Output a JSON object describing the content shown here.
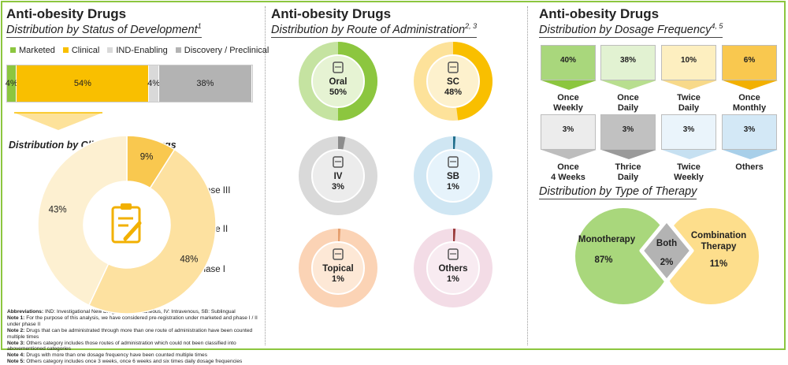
{
  "panels": {
    "status": {
      "title": "Anti-obesity Drugs",
      "subtitle": "Distribution by Status of Development",
      "subtitle_note": "1",
      "clinical_title": "Distribution by Clinical-stage Drugs",
      "icon": "clipboard-pen-icon"
    },
    "route": {
      "title": "Anti-obesity Drugs",
      "subtitle": "Distribution by Route of Administration",
      "subtitle_note": "2, 3"
    },
    "frequency": {
      "title": "Anti-obesity Drugs",
      "subtitle": "Distribution by Dosage Frequency",
      "subtitle_note": "4, 5"
    },
    "therapy": {
      "subtitle": "Distribution by Type of Therapy"
    }
  },
  "notes": [
    {
      "label": "Abbreviations:",
      "text": " IND: Investigational New Drug, SC: Subcutaneous, IV: Intravenous, SB: Sublingual"
    },
    {
      "label": "Note 1:",
      "text": " For the purpose of this analysis, we have considered pre-registration under marketed and phase I / II under phase II"
    },
    {
      "label": "Note 2:",
      "text": " Drugs that can be administrated through more than one route of administration have been counted multiple times"
    },
    {
      "label": "Note 3:",
      "text": " Others category includes those routes of administration which could not been classified into abovementioned categories"
    },
    {
      "label": "Note 4:",
      "text": " Drugs with more than one dosage frequency have been counted multiple times"
    },
    {
      "label": "Note 5:",
      "text": " Others category includes once 3 weeks, once 6 weeks and six times daily dosage frequencies"
    }
  ],
  "chart_data": [
    {
      "type": "bar",
      "id": "status",
      "orientation": "horizontal-stacked",
      "categories": [
        "Marketed",
        "Clinical",
        "IND-Enabling",
        "Discovery / Preclinical"
      ],
      "values": [
        4,
        54,
        4,
        38
      ],
      "labels": [
        "4%",
        "54%",
        "4%",
        "38%"
      ],
      "colors": [
        "#8cc63f",
        "#f9bf00",
        "#d9d9d9",
        "#b3b3b3"
      ],
      "legend": "top"
    },
    {
      "type": "pie",
      "id": "clinical",
      "donut": true,
      "categories": [
        "Phase III",
        "Phase II",
        "Phase I"
      ],
      "values": [
        9,
        48,
        43
      ],
      "labels": [
        "9%",
        "48%",
        "43%"
      ],
      "colors": [
        "#f9c84f",
        "#fde1a0",
        "#fdf0d1"
      ],
      "legend": "right"
    },
    {
      "type": "pie",
      "id": "route",
      "donut": true,
      "categories": [
        "Oral",
        "SC",
        "IV",
        "SB",
        "Topical",
        "Others"
      ],
      "values": [
        50,
        48,
        3,
        1,
        1,
        1
      ],
      "labels": [
        "50%",
        "48%",
        "3%",
        "1%",
        "1%",
        "1%"
      ],
      "colors": {
        "fill": [
          "#8cc63f",
          "#f9bf00",
          "#8c8c8c",
          "#1f6e8c",
          "#e59e6d",
          "#9b3b3b"
        ],
        "track": [
          "#c5e3a1",
          "#fde29a",
          "#d9d9d9",
          "#cfe6f3",
          "#fbd3b5",
          "#f3dce6"
        ],
        "inner": [
          "#e6f3d3",
          "#fdf1cd",
          "#ececec",
          "#e6f3fb",
          "#fde8d6",
          "#f8ebf1"
        ]
      },
      "icons": [
        "pill-bottle-icon",
        "syringe-icon",
        "iv-drip-icon",
        "tongue-icon",
        "ointment-tube-icon",
        "other-route-icon"
      ]
    },
    {
      "type": "bar",
      "id": "frequency",
      "categories": [
        "Once Weekly",
        "Once Daily",
        "Twice Daily",
        "Once Monthly",
        "Once 4 Weeks",
        "Thrice Daily",
        "Twice Weekly",
        "Others"
      ],
      "values": [
        40,
        38,
        10,
        6,
        3,
        3,
        3,
        3
      ],
      "labels": [
        "40%",
        "38%",
        "10%",
        "6%",
        "3%",
        "3%",
        "3%",
        "3%"
      ],
      "colors": [
        "#a9d77c",
        "#e2f2d2",
        "#fdefc0",
        "#f9c84f",
        "#ececec",
        "#c1c1c1",
        "#eaf4fb",
        "#d3e8f6"
      ],
      "tip_colors": [
        "#8cc63f",
        "#b8de8f",
        "#f7d98a",
        "#f2b000",
        "#bdbdbd",
        "#9a9a9a",
        "#c6e0f1",
        "#a8cfe9"
      ]
    },
    {
      "type": "pie",
      "id": "therapy",
      "layout": "venn",
      "categories": [
        "Monotherapy",
        "Both",
        "Combination Therapy"
      ],
      "values": [
        87,
        2,
        11
      ],
      "labels": [
        "87%",
        "2%",
        "11%"
      ],
      "colors": [
        "#a9d77c",
        "#b3b3b3",
        "#fdde8c"
      ]
    }
  ]
}
